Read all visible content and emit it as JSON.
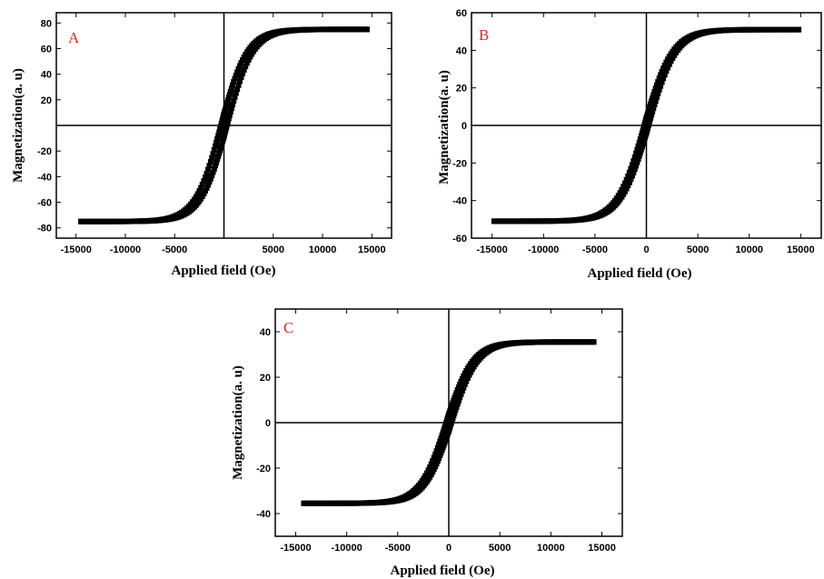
{
  "chart_data": [
    {
      "type": "scatter",
      "panel_label": "A",
      "xlabel": "Applied field (Oe)",
      "ylabel": "Magnetization(a. u)",
      "xlim": [
        -17000,
        17000
      ],
      "ylim": [
        -88,
        88
      ],
      "x_ticks": [
        -15000,
        -10000,
        -5000,
        5000,
        10000,
        15000
      ],
      "x_tick_labels": [
        "-15000",
        "-10000",
        "-5000",
        "5000",
        "10000",
        "15000"
      ],
      "y_ticks": [
        80,
        60,
        40,
        20,
        -20,
        -40,
        -60,
        -80
      ],
      "y_tick_labels": [
        "80",
        "60",
        "40",
        "20",
        "-20",
        "-40",
        "-60",
        "-80"
      ],
      "saturation": 75,
      "coercivity": 300,
      "field_max": 14500,
      "grid": false,
      "series": [
        {
          "values": [
            [
              -14500,
              -75.5
            ],
            [
              -13000,
              -74.5
            ],
            [
              -11000,
              -72.5
            ],
            [
              -9000,
              -69.5
            ],
            [
              -7000,
              -64.5
            ],
            [
              -5000,
              -57
            ],
            [
              -3000,
              -44
            ],
            [
              -1500,
              -24
            ],
            [
              -500,
              -2
            ],
            [
              0,
              13
            ],
            [
              500,
              26
            ],
            [
              1000,
              36
            ],
            [
              2000,
              50
            ],
            [
              3000,
              58
            ],
            [
              5000,
              66
            ],
            [
              8000,
              70.5
            ],
            [
              11000,
              72.5
            ],
            [
              14500,
              74.5
            ]
          ]
        },
        {
          "values": [
            [
              14500,
              74.5
            ],
            [
              13000,
              73.5
            ],
            [
              11000,
              71.5
            ],
            [
              9000,
              68.5
            ],
            [
              7000,
              63.5
            ],
            [
              5000,
              56
            ],
            [
              3000,
              43
            ],
            [
              1500,
              23
            ],
            [
              500,
              1
            ],
            [
              0,
              -14
            ],
            [
              -500,
              -27
            ],
            [
              -1000,
              -37
            ],
            [
              -2000,
              -51
            ],
            [
              -3000,
              -59
            ],
            [
              -5000,
              -66.5
            ],
            [
              -8000,
              -71
            ],
            [
              -11000,
              -73.5
            ],
            [
              -14500,
              -75.5
            ]
          ]
        }
      ]
    },
    {
      "type": "scatter",
      "panel_label": "B",
      "xlabel": "Applied field (Oe)",
      "ylabel": "Magnetization(a. u)",
      "xlim": [
        -17000,
        17000
      ],
      "ylim": [
        -60,
        60
      ],
      "x_ticks": [
        -15000,
        -10000,
        -5000,
        0,
        5000,
        10000,
        15000
      ],
      "x_tick_labels": [
        "-15000",
        "-10000",
        "-5000",
        "0",
        "5000",
        "10000",
        "15000"
      ],
      "y_ticks": [
        60,
        40,
        20,
        0,
        -20,
        -40,
        -60
      ],
      "y_tick_labels": [
        "60",
        "40",
        "20",
        "0",
        "-20",
        "-40",
        "-60"
      ],
      "saturation": 51,
      "coercivity": 200,
      "field_max": 14800,
      "grid": false,
      "series": [
        {
          "values": [
            [
              -14800,
              -50.5
            ],
            [
              -12000,
              -49
            ],
            [
              -9000,
              -46.5
            ],
            [
              -6000,
              -41
            ],
            [
              -4000,
              -34
            ],
            [
              -2000,
              -20
            ],
            [
              -800,
              -6
            ],
            [
              0,
              8
            ],
            [
              500,
              18
            ],
            [
              1500,
              30
            ],
            [
              3000,
              39
            ],
            [
              6000,
              45.5
            ],
            [
              10000,
              49
            ],
            [
              14800,
              51
            ]
          ]
        },
        {
          "values": [
            [
              14800,
              51
            ],
            [
              12000,
              49.5
            ],
            [
              9000,
              47
            ],
            [
              6000,
              42
            ],
            [
              4000,
              35
            ],
            [
              2000,
              21
            ],
            [
              800,
              7
            ],
            [
              0,
              -8
            ],
            [
              -500,
              -18
            ],
            [
              -1500,
              -30
            ],
            [
              -3000,
              -39
            ],
            [
              -6000,
              -45.5
            ],
            [
              -10000,
              -49
            ],
            [
              -14800,
              -50.5
            ]
          ]
        }
      ]
    },
    {
      "type": "scatter",
      "panel_label": "C",
      "xlabel": "Applied field (Oe)",
      "ylabel": "Magnetization(a. u)",
      "xlim": [
        -17000,
        17000
      ],
      "ylim": [
        -50,
        50
      ],
      "x_ticks": [
        -15000,
        -10000,
        -5000,
        0,
        5000,
        10000,
        15000
      ],
      "x_tick_labels": [
        "-15000",
        "-10000",
        "-5000",
        "0",
        "5000",
        "10000",
        "15000"
      ],
      "y_ticks": [
        40,
        20,
        0,
        -20,
        -40
      ],
      "y_tick_labels": [
        "40",
        "20",
        "0",
        "-20",
        "-40"
      ],
      "saturation": 35.5,
      "coercivity": 250,
      "field_max": 14200,
      "grid": false,
      "series": [
        {
          "values": [
            [
              -14200,
              -35.5
            ],
            [
              -11000,
              -34.5
            ],
            [
              -8000,
              -33
            ],
            [
              -5000,
              -30
            ],
            [
              -3000,
              -25
            ],
            [
              -1500,
              -16
            ],
            [
              -500,
              -5
            ],
            [
              0,
              5
            ],
            [
              500,
              13
            ],
            [
              1500,
              23
            ],
            [
              3000,
              28
            ],
            [
              6000,
              31.5
            ],
            [
              10000,
              34
            ],
            [
              14200,
              35.5
            ]
          ]
        },
        {
          "values": [
            [
              14200,
              35.5
            ],
            [
              11000,
              34.5
            ],
            [
              8000,
              32.5
            ],
            [
              5000,
              29.5
            ],
            [
              3000,
              24.5
            ],
            [
              1500,
              15
            ],
            [
              500,
              4
            ],
            [
              0,
              -6
            ],
            [
              -500,
              -14
            ],
            [
              -1500,
              -24
            ],
            [
              -3000,
              -28.5
            ],
            [
              -6000,
              -31.5
            ],
            [
              -10000,
              -34
            ],
            [
              -14200,
              -35.5
            ]
          ]
        }
      ]
    }
  ]
}
